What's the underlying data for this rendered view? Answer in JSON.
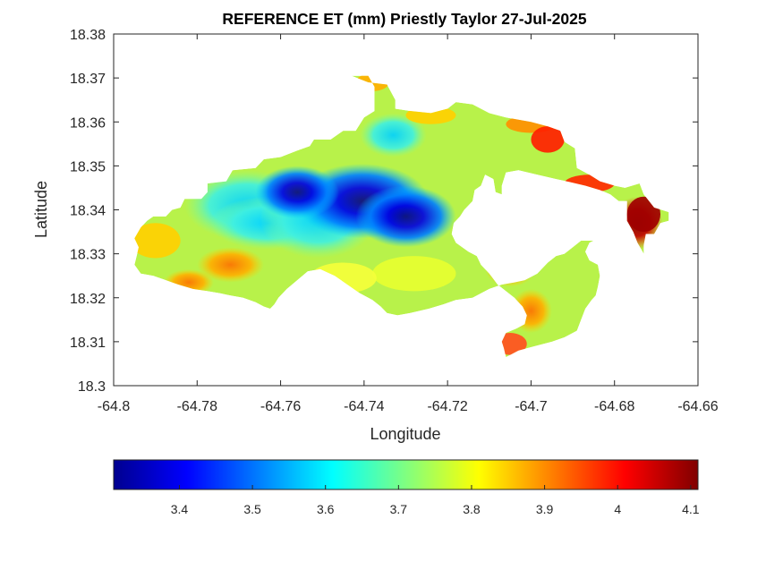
{
  "chart_data": {
    "type": "heatmap",
    "title": "REFERENCE ET (mm) Priestly Taylor 27-Jul-2025",
    "xlabel": "Longitude",
    "ylabel": "Latitude",
    "xlim": [
      -64.8,
      -64.66
    ],
    "ylim": [
      18.3,
      18.38
    ],
    "x_ticks": [
      -64.8,
      -64.78,
      -64.76,
      -64.74,
      -64.72,
      -64.7,
      -64.68,
      -64.66
    ],
    "x_tick_labels": [
      "-64.8",
      "-64.78",
      "-64.76",
      "-64.74",
      "-64.72",
      "-64.7",
      "-64.68",
      "-64.66"
    ],
    "y_ticks": [
      18.3,
      18.31,
      18.32,
      18.33,
      18.34,
      18.35,
      18.36,
      18.37,
      18.38
    ],
    "y_tick_labels": [
      "18.3",
      "18.31",
      "18.32",
      "18.33",
      "18.34",
      "18.35",
      "18.36",
      "18.37",
      "18.38"
    ],
    "grid": false,
    "colormap": "jet",
    "colorbar": {
      "orientation": "horizontal",
      "range": [
        3.31,
        4.11
      ],
      "ticks": [
        3.4,
        3.5,
        3.6,
        3.7,
        3.8,
        3.9,
        4.0,
        4.1
      ],
      "tick_labels": [
        "3.4",
        "3.5",
        "3.6",
        "3.7",
        "3.8",
        "3.9",
        "4",
        "4.1"
      ]
    },
    "regions": [
      {
        "outline": [
          [
            -64.7935,
            18.336
          ],
          [
            -64.792,
            18.3375
          ],
          [
            -64.7905,
            18.3385
          ],
          [
            -64.7875,
            18.3385
          ],
          [
            -64.786,
            18.34
          ],
          [
            -64.784,
            18.3405
          ],
          [
            -64.783,
            18.3425
          ],
          [
            -64.779,
            18.3425
          ],
          [
            -64.7775,
            18.344
          ],
          [
            -64.7775,
            18.346
          ],
          [
            -64.773,
            18.3465
          ],
          [
            -64.7715,
            18.349
          ],
          [
            -64.766,
            18.3495
          ],
          [
            -64.764,
            18.3515
          ],
          [
            -64.76,
            18.352
          ],
          [
            -64.756,
            18.3535
          ],
          [
            -64.753,
            18.3545
          ],
          [
            -64.752,
            18.356
          ],
          [
            -64.748,
            18.356
          ],
          [
            -64.745,
            18.358
          ],
          [
            -64.742,
            18.358
          ],
          [
            -64.74,
            18.361
          ],
          [
            -64.7375,
            18.3625
          ],
          [
            -64.7375,
            18.368
          ],
          [
            -64.739,
            18.3705
          ],
          [
            -64.743,
            18.3705
          ],
          [
            -64.739,
            18.369
          ],
          [
            -64.7345,
            18.3685
          ],
          [
            -64.7325,
            18.365
          ],
          [
            -64.7325,
            18.363
          ],
          [
            -64.729,
            18.3625
          ],
          [
            -64.724,
            18.362
          ],
          [
            -64.72,
            18.363
          ],
          [
            -64.718,
            18.3645
          ],
          [
            -64.714,
            18.364
          ],
          [
            -64.71,
            18.362
          ],
          [
            -64.706,
            18.361
          ],
          [
            -64.703,
            18.3605
          ],
          [
            -64.7,
            18.36
          ],
          [
            -64.696,
            18.359
          ],
          [
            -64.693,
            18.358
          ],
          [
            -64.692,
            18.3555
          ],
          [
            -64.6895,
            18.354
          ],
          [
            -64.689,
            18.3495
          ],
          [
            -64.686,
            18.348
          ],
          [
            -64.6835,
            18.3465
          ],
          [
            -64.68,
            18.3455
          ],
          [
            -64.6775,
            18.345
          ],
          [
            -64.674,
            18.346
          ],
          [
            -64.673,
            18.3435
          ],
          [
            -64.6705,
            18.3405
          ],
          [
            -64.667,
            18.3395
          ],
          [
            -64.667,
            18.3375
          ],
          [
            -64.669,
            18.337
          ],
          [
            -64.6705,
            18.3345
          ],
          [
            -64.6725,
            18.3345
          ],
          [
            -64.673,
            18.332
          ],
          [
            -64.673,
            18.33
          ],
          [
            -64.6745,
            18.3325
          ],
          [
            -64.6755,
            18.335
          ],
          [
            -64.677,
            18.3375
          ],
          [
            -64.677,
            18.342
          ],
          [
            -64.679,
            18.342
          ],
          [
            -64.681,
            18.3435
          ],
          [
            -64.6835,
            18.3445
          ],
          [
            -64.687,
            18.3455
          ],
          [
            -64.6915,
            18.3465
          ],
          [
            -64.694,
            18.347
          ],
          [
            -64.6985,
            18.348
          ],
          [
            -64.703,
            18.349
          ],
          [
            -64.706,
            18.3485
          ],
          [
            -64.707,
            18.3455
          ],
          [
            -64.707,
            18.3435
          ],
          [
            -64.7085,
            18.344
          ],
          [
            -64.709,
            18.347
          ],
          [
            -64.711,
            18.348
          ],
          [
            -64.712,
            18.3455
          ],
          [
            -64.7135,
            18.3445
          ],
          [
            -64.714,
            18.342
          ],
          [
            -64.716,
            18.34
          ],
          [
            -64.717,
            18.3385
          ],
          [
            -64.7185,
            18.337
          ],
          [
            -64.719,
            18.3345
          ],
          [
            -64.718,
            18.3325
          ],
          [
            -64.715,
            18.3305
          ],
          [
            -64.713,
            18.3295
          ],
          [
            -64.712,
            18.3275
          ],
          [
            -64.71,
            18.3255
          ],
          [
            -64.708,
            18.323
          ],
          [
            -64.706,
            18.3215
          ],
          [
            -64.704,
            18.32
          ],
          [
            -64.702,
            18.318
          ],
          [
            -64.701,
            18.316
          ],
          [
            -64.7015,
            18.314
          ],
          [
            -64.7035,
            18.313
          ],
          [
            -64.706,
            18.312
          ],
          [
            -64.707,
            18.31
          ],
          [
            -64.7065,
            18.3085
          ],
          [
            -64.706,
            18.3065
          ],
          [
            -64.703,
            18.308
          ],
          [
            -64.699,
            18.309
          ],
          [
            -64.695,
            18.31
          ],
          [
            -64.692,
            18.311
          ],
          [
            -64.689,
            18.3125
          ],
          [
            -64.688,
            18.315
          ],
          [
            -64.687,
            18.3175
          ],
          [
            -64.6855,
            18.3195
          ],
          [
            -64.6845,
            18.3205
          ],
          [
            -64.684,
            18.3225
          ],
          [
            -64.6835,
            18.325
          ],
          [
            -64.684,
            18.3275
          ],
          [
            -64.686,
            18.3285
          ],
          [
            -64.687,
            18.3305
          ],
          [
            -64.686,
            18.3325
          ],
          [
            -64.685,
            18.333
          ],
          [
            -64.688,
            18.333
          ],
          [
            -64.69,
            18.3315
          ],
          [
            -64.692,
            18.33
          ],
          [
            -64.694,
            18.3295
          ],
          [
            -64.696,
            18.328
          ],
          [
            -64.6985,
            18.3255
          ],
          [
            -64.7015,
            18.324
          ],
          [
            -64.704,
            18.3235
          ],
          [
            -64.707,
            18.323
          ],
          [
            -64.71,
            18.322
          ],
          [
            -64.714,
            18.32
          ],
          [
            -64.718,
            18.3195
          ],
          [
            -64.721,
            18.3185
          ],
          [
            -64.7245,
            18.3175
          ],
          [
            -64.729,
            18.3165
          ],
          [
            -64.732,
            18.316
          ],
          [
            -64.7345,
            18.3165
          ],
          [
            -64.736,
            18.318
          ],
          [
            -64.738,
            18.3195
          ],
          [
            -64.741,
            18.321
          ],
          [
            -64.744,
            18.323
          ],
          [
            -64.747,
            18.325
          ],
          [
            -64.7505,
            18.3265
          ],
          [
            -64.7535,
            18.326
          ],
          [
            -64.756,
            18.324
          ],
          [
            -64.7585,
            18.322
          ],
          [
            -64.7605,
            18.32
          ],
          [
            -64.7615,
            18.3185
          ],
          [
            -64.7625,
            18.3175
          ],
          [
            -64.764,
            18.318
          ],
          [
            -64.766,
            18.319
          ],
          [
            -64.769,
            18.32
          ],
          [
            -64.772,
            18.3205
          ],
          [
            -64.7745,
            18.321
          ],
          [
            -64.7775,
            18.3215
          ],
          [
            -64.781,
            18.322
          ],
          [
            -64.7845,
            18.323
          ],
          [
            -64.7875,
            18.324
          ],
          [
            -64.7905,
            18.325
          ],
          [
            -64.7935,
            18.3255
          ],
          [
            -64.795,
            18.3275
          ],
          [
            -64.7945,
            18.3295
          ],
          [
            -64.794,
            18.3315
          ],
          [
            -64.795,
            18.3335
          ]
        ]
      },
      {
        "outline": [
          [
            -64.7615,
            18.316
          ],
          [
            -64.7605,
            18.3185
          ],
          [
            -64.7595,
            18.321
          ],
          [
            -64.757,
            18.323
          ],
          [
            -64.754,
            18.325
          ],
          [
            -64.7505,
            18.3265
          ],
          [
            -64.747,
            18.3255
          ],
          [
            -64.744,
            18.3235
          ],
          [
            -64.741,
            18.3215
          ],
          [
            -64.738,
            18.32
          ],
          [
            -64.735,
            18.318
          ],
          [
            -64.733,
            18.3165
          ],
          [
            -64.73,
            18.3165
          ],
          [
            -64.726,
            18.3175
          ],
          [
            -64.722,
            18.3185
          ],
          [
            -64.719,
            18.319
          ],
          [
            -64.716,
            18.3195
          ],
          [
            -64.713,
            18.3205
          ],
          [
            -64.71,
            18.3215
          ],
          [
            -64.708,
            18.3225
          ],
          [
            -64.706,
            18.324
          ],
          [
            -64.704,
            18.3255
          ],
          [
            -64.702,
            18.3265
          ],
          [
            -64.7,
            18.327
          ],
          [
            -64.698,
            18.3285
          ],
          [
            -64.696,
            18.33
          ],
          [
            -64.6945,
            18.331
          ],
          [
            -64.693,
            18.3325
          ],
          [
            -64.692,
            18.3335
          ],
          [
            -64.695,
            18.334
          ],
          [
            -64.698,
            18.334
          ],
          [
            -64.701,
            18.3335
          ],
          [
            -64.704,
            18.333
          ],
          [
            -64.707,
            18.3325
          ],
          [
            -64.71,
            18.332
          ],
          [
            -64.713,
            18.3315
          ],
          [
            -64.716,
            18.331
          ],
          [
            -64.719,
            18.3305
          ],
          [
            -64.722,
            18.33
          ],
          [
            -64.725,
            18.329
          ],
          [
            -64.728,
            18.328
          ],
          [
            -64.731,
            18.327
          ],
          [
            -64.734,
            18.326
          ],
          [
            -64.737,
            18.325
          ],
          [
            -64.74,
            18.324
          ],
          [
            -64.743,
            18.323
          ],
          [
            -64.746,
            18.322
          ],
          [
            -64.749,
            18.321
          ],
          [
            -64.752,
            18.32
          ],
          [
            -64.755,
            18.319
          ],
          [
            -64.758,
            18.318
          ],
          [
            -64.76,
            18.317
          ]
        ]
      }
    ]
  }
}
